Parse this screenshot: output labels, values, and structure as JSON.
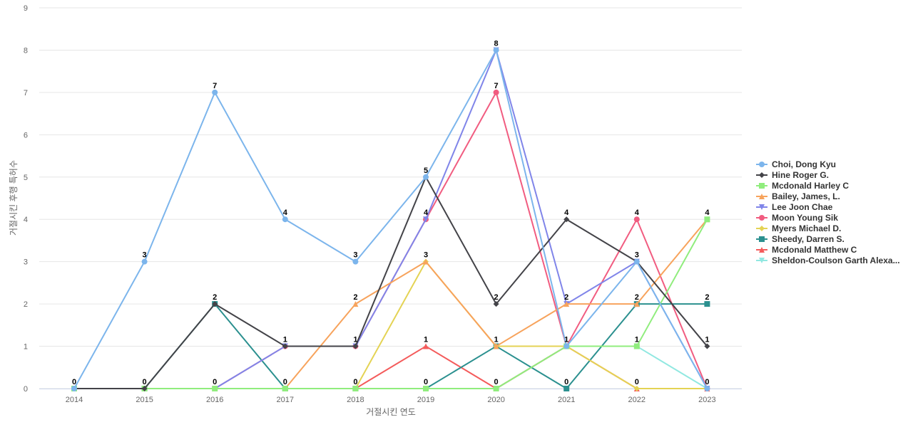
{
  "chart_data": {
    "type": "line",
    "title": "",
    "xlabel": "거절시킨 연도",
    "ylabel": "거절시킨 후행 특허수",
    "categories": [
      "2014",
      "2015",
      "2016",
      "2017",
      "2018",
      "2019",
      "2020",
      "2021",
      "2022",
      "2023"
    ],
    "ylim": [
      0,
      9
    ],
    "yticks": [
      0,
      1,
      2,
      3,
      4,
      5,
      6,
      7,
      8,
      9
    ],
    "grid": true,
    "legend_position": "right",
    "series": [
      {
        "name": "Choi, Dong Kyu",
        "color": "#7cb5ec",
        "marker": "circle",
        "values": [
          0,
          3,
          7,
          4,
          3,
          5,
          8,
          1,
          3,
          0
        ]
      },
      {
        "name": "Hine Roger G.",
        "color": "#434348",
        "marker": "diamond",
        "values": [
          0,
          0,
          2,
          1,
          1,
          5,
          2,
          4,
          3,
          1
        ]
      },
      {
        "name": "Mcdonald Harley C",
        "color": "#90ed7d",
        "marker": "square",
        "values": [
          0,
          0,
          0,
          0,
          0,
          0,
          0,
          1,
          1,
          4
        ]
      },
      {
        "name": "Bailey, James, L.",
        "color": "#f7a35c",
        "marker": "triangle",
        "values": [
          0,
          0,
          0,
          0,
          2,
          3,
          1,
          2,
          2,
          4
        ]
      },
      {
        "name": "Lee Joon Chae",
        "color": "#8085e9",
        "marker": "triangle-down",
        "values": [
          0,
          0,
          0,
          1,
          1,
          4,
          8,
          2,
          3,
          0
        ]
      },
      {
        "name": "Moon Young Sik",
        "color": "#f15c80",
        "marker": "circle",
        "values": [
          0,
          0,
          0,
          1,
          1,
          4,
          7,
          1,
          4,
          0
        ]
      },
      {
        "name": "Myers Michael D.",
        "color": "#e4d354",
        "marker": "diamond",
        "values": [
          0,
          0,
          0,
          0,
          0,
          3,
          1,
          1,
          0,
          0
        ]
      },
      {
        "name": "Sheedy, Darren S.",
        "color": "#2b908f",
        "marker": "square",
        "values": [
          0,
          0,
          2,
          0,
          0,
          0,
          1,
          0,
          2,
          2
        ]
      },
      {
        "name": "Mcdonald Matthew C",
        "color": "#f45b5b",
        "marker": "triangle",
        "values": [
          0,
          0,
          0,
          0,
          0,
          1,
          0,
          1,
          0,
          0
        ]
      },
      {
        "name": "Sheldon-Coulson Garth Alexa...",
        "color": "#91e8e1",
        "marker": "triangle-down",
        "values": [
          0,
          0,
          0,
          0,
          0,
          0,
          0,
          1,
          1,
          0
        ]
      }
    ],
    "data_labels": [
      {
        "category": "2014",
        "text": "0"
      },
      {
        "category": "2015",
        "text": "3"
      },
      {
        "category": "2015",
        "text": "0"
      },
      {
        "category": "2016",
        "text": "7"
      },
      {
        "category": "2016",
        "text": "2"
      },
      {
        "category": "2016",
        "text": "0"
      },
      {
        "category": "2017",
        "text": "4"
      },
      {
        "category": "2017",
        "text": "1"
      },
      {
        "category": "2017",
        "text": "0"
      },
      {
        "category": "2018",
        "text": "3"
      },
      {
        "category": "2018",
        "text": "2"
      },
      {
        "category": "2018",
        "text": "1"
      },
      {
        "category": "2018",
        "text": "0"
      },
      {
        "category": "2019",
        "text": "5"
      },
      {
        "category": "2019",
        "text": "4"
      },
      {
        "category": "2019",
        "text": "3"
      },
      {
        "category": "2019",
        "text": "1"
      },
      {
        "category": "2019",
        "text": "0"
      },
      {
        "category": "2020",
        "text": "8"
      },
      {
        "category": "2020",
        "text": "7"
      },
      {
        "category": "2020",
        "text": "2"
      },
      {
        "category": "2020",
        "text": "1"
      },
      {
        "category": "2020",
        "text": "0"
      },
      {
        "category": "2021",
        "text": "4"
      },
      {
        "category": "2021",
        "text": "2"
      },
      {
        "category": "2021",
        "text": "1"
      },
      {
        "category": "2021",
        "text": "0"
      },
      {
        "category": "2022",
        "text": "4"
      },
      {
        "category": "2022",
        "text": "3"
      },
      {
        "category": "2022",
        "text": "2"
      },
      {
        "category": "2022",
        "text": "1"
      },
      {
        "category": "2022",
        "text": "0"
      },
      {
        "category": "2023",
        "text": "4"
      },
      {
        "category": "2023",
        "text": "2"
      },
      {
        "category": "2023",
        "text": "1"
      },
      {
        "category": "2023",
        "text": "0"
      }
    ]
  }
}
